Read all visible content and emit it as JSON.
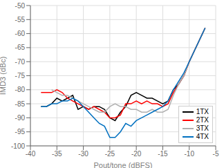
{
  "chart_data": {
    "type": "line",
    "x_label": "Pout/tone (dBFS)",
    "y_label": "IMD3 (dBc)",
    "xlim": [
      -40,
      -5
    ],
    "ylim": [
      -100,
      -50
    ],
    "xticks": [
      -40,
      -35,
      -30,
      -25,
      -20,
      -15,
      -10,
      -5
    ],
    "yticks": [
      -100,
      -95,
      -90,
      -85,
      -80,
      -75,
      -70,
      -65,
      -60,
      -55,
      -50
    ],
    "grid": true,
    "legend": "lower right",
    "series": [
      {
        "name": "1TX",
        "color": "#000000",
        "x": [
          -38,
          -37,
          -36,
          -35,
          -34,
          -33,
          -32,
          -31,
          -30,
          -29,
          -28,
          -27,
          -26,
          -25,
          -24,
          -23,
          -22,
          -21,
          -20,
          -19,
          -18,
          -17,
          -16,
          -15,
          -14,
          -13,
          -12,
          -11,
          -10,
          -9,
          -8,
          -7
        ],
        "values": [
          -86,
          -86,
          -85,
          -83,
          -84,
          -83,
          -82,
          -87,
          -86,
          -87,
          -86,
          -86,
          -87,
          -90,
          -91,
          -88,
          -86,
          -82,
          -81,
          -82,
          -83,
          -83,
          -84,
          -85,
          -84,
          -80,
          -78,
          -75,
          -70,
          -66,
          -62,
          -58
        ]
      },
      {
        "name": "2TX",
        "color": "#ff0000",
        "x": [
          -38,
          -37,
          -36,
          -35,
          -34,
          -33,
          -32,
          -31,
          -30,
          -29,
          -28,
          -27,
          -26,
          -25,
          -24,
          -23,
          -22,
          -21,
          -20,
          -19,
          -18,
          -17,
          -16,
          -15,
          -14,
          -13,
          -12,
          -11,
          -10,
          -9,
          -8,
          -7
        ],
        "values": [
          -81,
          -81,
          -81,
          -80,
          -81,
          -83,
          -84,
          -85,
          -86,
          -87,
          -86,
          -87,
          -88,
          -90,
          -90,
          -89,
          -85,
          -85,
          -84,
          -85,
          -84,
          -85,
          -85,
          -86,
          -85,
          -81,
          -78,
          -75,
          -70,
          -66,
          -62,
          -58
        ]
      },
      {
        "name": "3TX",
        "color": "#b0b0b0",
        "x": [
          -36,
          -35,
          -34,
          -33,
          -32,
          -31,
          -30,
          -29,
          -28,
          -27,
          -26,
          -25,
          -24,
          -23,
          -22,
          -21,
          -20,
          -19,
          -18,
          -17,
          -16,
          -15,
          -14,
          -13,
          -12,
          -11,
          -10,
          -9,
          -8,
          -7
        ],
        "values": [
          -80,
          -81,
          -82,
          -82,
          -83,
          -84,
          -85,
          -86,
          -87,
          -88,
          -88,
          -86,
          -85,
          -86,
          -86,
          -87,
          -87,
          -88,
          -88,
          -87,
          -88,
          -88,
          -87,
          -82,
          -78,
          -75,
          -70,
          -66,
          -62,
          -58
        ]
      },
      {
        "name": "4TX",
        "color": "#0070c0",
        "x": [
          -38,
          -37,
          -36,
          -35,
          -34,
          -33,
          -32,
          -31,
          -30,
          -29,
          -28,
          -27,
          -26,
          -25,
          -24,
          -23,
          -22,
          -21,
          -20,
          -19,
          -18,
          -17,
          -16,
          -15,
          -14,
          -13,
          -12,
          -11,
          -10,
          -9,
          -8,
          -7
        ],
        "values": [
          -86,
          -86,
          -85,
          -85,
          -84,
          -84,
          -83,
          -84,
          -86,
          -88,
          -90,
          -92,
          -93,
          -97,
          -97,
          -95,
          -92,
          -93,
          -91,
          -90,
          -89,
          -88,
          -87,
          -86,
          -84,
          -80,
          -77,
          -74,
          -70,
          -66,
          -62,
          -58
        ]
      }
    ]
  }
}
